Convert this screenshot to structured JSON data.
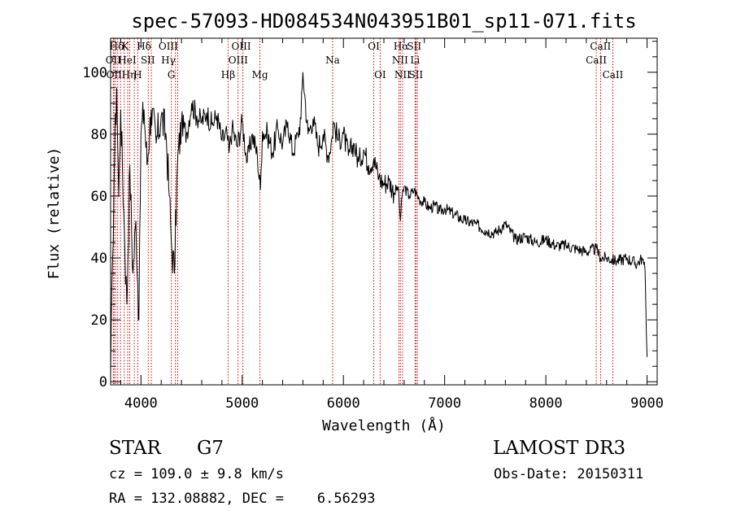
{
  "chart_data": {
    "type": "line",
    "title": "spec-57093-HD084534N043951B01_sp11-071.fits",
    "xlabel": "Wavelength (Å)",
    "ylabel": "Flux (relative)",
    "xlim": [
      3700,
      9100
    ],
    "ylim": [
      -1,
      111
    ],
    "xticks": [
      4000,
      5000,
      6000,
      7000,
      8000,
      9000
    ],
    "yticks": [
      0,
      20,
      40,
      60,
      80,
      100
    ],
    "series": [
      {
        "name": "flux",
        "color": "#000000",
        "x": [
          3700,
          3720,
          3740,
          3760,
          3780,
          3800,
          3830,
          3860,
          3890,
          3920,
          3950,
          3980,
          4000,
          4030,
          4060,
          4100,
          4150,
          4200,
          4250,
          4280,
          4300,
          4330,
          4360,
          4400,
          4450,
          4500,
          4550,
          4600,
          4650,
          4700,
          4750,
          4800,
          4850,
          4870,
          4900,
          4950,
          5000,
          5050,
          5100,
          5150,
          5180,
          5200,
          5250,
          5300,
          5350,
          5400,
          5450,
          5500,
          5550,
          5580,
          5600,
          5650,
          5700,
          5750,
          5800,
          5850,
          5890,
          5900,
          5950,
          6000,
          6050,
          6100,
          6150,
          6200,
          6250,
          6300,
          6350,
          6400,
          6450,
          6500,
          6540,
          6563,
          6580,
          6600,
          6650,
          6700,
          6750,
          6800,
          6850,
          6900,
          6950,
          7000,
          7100,
          7200,
          7300,
          7400,
          7500,
          7600,
          7700,
          7800,
          7900,
          8000,
          8100,
          8200,
          8300,
          8400,
          8500,
          8540,
          8600,
          8700,
          8800,
          8900,
          8950,
          8980,
          9000
        ],
        "values": [
          2,
          40,
          74,
          95,
          60,
          88,
          55,
          25,
          70,
          35,
          52,
          20,
          80,
          88,
          70,
          88,
          77,
          86,
          79,
          60,
          45,
          35,
          70,
          84,
          80,
          90,
          86,
          84,
          87,
          83,
          86,
          78,
          80,
          74,
          82,
          76,
          84,
          71,
          80,
          73,
          62,
          81,
          80,
          74,
          82,
          77,
          84,
          74,
          80,
          85,
          100,
          80,
          85,
          76,
          80,
          73,
          79,
          84,
          78,
          80,
          73,
          77,
          71,
          75,
          70,
          72,
          66,
          64,
          65,
          61,
          63,
          52,
          60,
          63,
          60,
          62,
          59,
          58,
          56,
          57,
          55,
          56,
          54,
          52,
          51,
          49,
          48,
          51,
          46,
          47,
          45,
          46,
          44,
          44,
          43,
          42,
          43,
          40,
          40,
          39,
          40,
          38,
          40,
          36,
          8
        ]
      }
    ],
    "spectral_lines": [
      {
        "label": "Hδ",
        "x": 3760,
        "row": 1
      },
      {
        "label": "K",
        "x": 3845,
        "row": 1
      },
      {
        "label": "Hδ",
        "x": 4030,
        "row": 1
      },
      {
        "label": "OIII",
        "x": 4270,
        "row": 1
      },
      {
        "label": "OIII",
        "x": 4990,
        "row": 1
      },
      {
        "label": "OI",
        "x": 6300,
        "row": 1
      },
      {
        "label": "Hα",
        "x": 6570,
        "row": 1
      },
      {
        "label": "SII",
        "x": 6700,
        "row": 1
      },
      {
        "label": "CaII",
        "x": 8540,
        "row": 1
      },
      {
        "label": "OII",
        "x": 3727,
        "row": 2
      },
      {
        "label": "HeI",
        "x": 3865,
        "row": 2
      },
      {
        "label": "SII",
        "x": 4068,
        "row": 2
      },
      {
        "label": "Hγ",
        "x": 4270,
        "row": 2
      },
      {
        "label": "OIII",
        "x": 4960,
        "row": 2
      },
      {
        "label": "Na",
        "x": 5893,
        "row": 2
      },
      {
        "label": "NII",
        "x": 6560,
        "row": 2
      },
      {
        "label": "Li",
        "x": 6708,
        "row": 2
      },
      {
        "label": "CaII",
        "x": 8498,
        "row": 2
      },
      {
        "label": "OII",
        "x": 3734,
        "row": 3
      },
      {
        "label": "Hη",
        "x": 3880,
        "row": 3
      },
      {
        "label": "H",
        "x": 3968,
        "row": 3
      },
      {
        "label": "G",
        "x": 4300,
        "row": 3
      },
      {
        "label": "Hβ",
        "x": 4861,
        "row": 3
      },
      {
        "label": "Mg",
        "x": 5175,
        "row": 3
      },
      {
        "label": "OI",
        "x": 6363,
        "row": 3
      },
      {
        "label": "NII",
        "x": 6584,
        "row": 3
      },
      {
        "label": "SII",
        "x": 6716,
        "row": 3
      },
      {
        "label": "CaII",
        "x": 8662,
        "row": 3
      }
    ],
    "line_markers_x": [
      3727,
      3734,
      3750,
      3770,
      3798,
      3835,
      3869,
      3889,
      3934,
      3968,
      4072,
      4102,
      4300,
      4340,
      4363,
      4861,
      4959,
      5007,
      5175,
      5893,
      6300,
      6363,
      6548,
      6563,
      6584,
      6708,
      6716,
      6731,
      8498,
      8542,
      8662
    ],
    "colors": {
      "axes": "#000000",
      "line": "#000000",
      "markers": "#cc0000",
      "background": "#ffffff"
    }
  },
  "info": {
    "object_class": "STAR",
    "subclass": "G7",
    "survey": "LAMOST DR3",
    "redshift_line": "cz = 109.0 ± 9.8 km/s",
    "obs_date": "Obs-Date: 20150311",
    "coords": "RA = 132.08882, DEC =    6.56293"
  }
}
